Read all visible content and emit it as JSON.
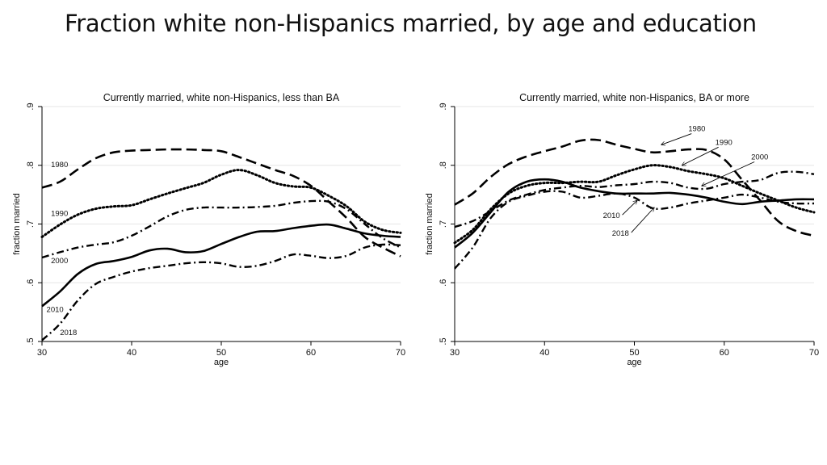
{
  "slide_title": "Fraction white non-Hispanics married, by age and education",
  "chart_data": [
    {
      "type": "line",
      "title": "Currently married, white non-Hispanics, less than BA",
      "xlabel": "age",
      "ylabel": "fraction married",
      "xlim": [
        30,
        70
      ],
      "ylim": [
        0.5,
        0.9
      ],
      "xticks": [
        30,
        40,
        50,
        60,
        70
      ],
      "yticks": [
        0.5,
        0.6,
        0.7,
        0.8,
        0.9
      ],
      "xtick_labels": [
        "30",
        "40",
        "50",
        "60",
        "70"
      ],
      "ytick_labels": [
        ".5",
        ".6",
        ".7",
        ".8",
        ".9"
      ],
      "grid": true,
      "series": [
        {
          "name": "1980",
          "style": "longdash",
          "x": [
            30,
            32,
            34,
            36,
            38,
            40,
            42,
            44,
            46,
            48,
            50,
            52,
            54,
            56,
            58,
            60,
            62,
            64,
            66,
            68,
            70
          ],
          "y": [
            0.762,
            0.772,
            0.793,
            0.812,
            0.822,
            0.825,
            0.826,
            0.827,
            0.827,
            0.826,
            0.824,
            0.814,
            0.803,
            0.792,
            0.782,
            0.765,
            0.738,
            0.71,
            0.678,
            0.66,
            0.645
          ]
        },
        {
          "name": "1990",
          "style": "dot",
          "x": [
            30,
            32,
            34,
            36,
            38,
            40,
            42,
            44,
            46,
            48,
            50,
            52,
            54,
            56,
            58,
            60,
            62,
            64,
            66,
            68,
            70
          ],
          "y": [
            0.678,
            0.699,
            0.716,
            0.726,
            0.73,
            0.732,
            0.742,
            0.752,
            0.761,
            0.77,
            0.784,
            0.792,
            0.783,
            0.77,
            0.764,
            0.762,
            0.748,
            0.73,
            0.704,
            0.69,
            0.685
          ]
        },
        {
          "name": "2000",
          "style": "dashdot",
          "x": [
            30,
            32,
            34,
            36,
            38,
            40,
            42,
            44,
            46,
            48,
            50,
            52,
            54,
            56,
            58,
            60,
            62,
            64,
            66,
            68,
            70
          ],
          "y": [
            0.643,
            0.652,
            0.66,
            0.665,
            0.669,
            0.68,
            0.696,
            0.713,
            0.724,
            0.728,
            0.728,
            0.728,
            0.729,
            0.731,
            0.736,
            0.739,
            0.738,
            0.725,
            0.7,
            0.676,
            0.66
          ]
        },
        {
          "name": "2010",
          "style": "solid",
          "x": [
            30,
            32,
            34,
            36,
            38,
            40,
            42,
            44,
            46,
            48,
            50,
            52,
            54,
            56,
            58,
            60,
            62,
            64,
            66,
            68,
            70
          ],
          "y": [
            0.56,
            0.585,
            0.615,
            0.632,
            0.637,
            0.644,
            0.655,
            0.658,
            0.652,
            0.654,
            0.666,
            0.678,
            0.687,
            0.688,
            0.693,
            0.697,
            0.699,
            0.692,
            0.684,
            0.68,
            0.678
          ]
        },
        {
          "name": "2018",
          "style": "dashdot",
          "x": [
            30,
            32,
            34,
            36,
            38,
            40,
            42,
            44,
            46,
            48,
            50,
            52,
            54,
            56,
            58,
            60,
            62,
            64,
            66,
            68,
            70
          ],
          "y": [
            0.502,
            0.53,
            0.57,
            0.598,
            0.61,
            0.619,
            0.625,
            0.629,
            0.633,
            0.635,
            0.633,
            0.627,
            0.629,
            0.637,
            0.648,
            0.646,
            0.642,
            0.646,
            0.66,
            0.665,
            0.664
          ]
        }
      ],
      "annotations": [
        {
          "text": "1980",
          "x": 31,
          "y": 0.797
        },
        {
          "text": "1990",
          "x": 31,
          "y": 0.714
        },
        {
          "text": "2000",
          "x": 31,
          "y": 0.633
        },
        {
          "text": "2010",
          "x": 30.5,
          "y": 0.55
        },
        {
          "text": "2018",
          "x": 32,
          "y": 0.511
        }
      ]
    },
    {
      "type": "line",
      "title": "Currently married, white non-Hispanics, BA or more",
      "xlabel": "age",
      "ylabel": "fraction married",
      "xlim": [
        30,
        70
      ],
      "ylim": [
        0.5,
        0.9
      ],
      "xticks": [
        30,
        40,
        50,
        60,
        70
      ],
      "yticks": [
        0.5,
        0.6,
        0.7,
        0.8,
        0.9
      ],
      "xtick_labels": [
        "30",
        "40",
        "50",
        "60",
        "70"
      ],
      "ytick_labels": [
        ".5",
        ".6",
        ".7",
        ".8",
        ".9"
      ],
      "grid": true,
      "series": [
        {
          "name": "1980",
          "style": "longdash",
          "x": [
            30,
            32,
            34,
            36,
            38,
            40,
            42,
            44,
            46,
            48,
            50,
            52,
            54,
            56,
            58,
            60,
            62,
            64,
            66,
            68,
            70
          ],
          "y": [
            0.733,
            0.752,
            0.78,
            0.802,
            0.815,
            0.824,
            0.832,
            0.842,
            0.843,
            0.835,
            0.828,
            0.822,
            0.824,
            0.827,
            0.826,
            0.81,
            0.775,
            0.74,
            0.705,
            0.688,
            0.68
          ]
        },
        {
          "name": "1990",
          "style": "dot",
          "x": [
            30,
            32,
            34,
            36,
            38,
            40,
            42,
            44,
            46,
            48,
            50,
            52,
            54,
            56,
            58,
            60,
            62,
            64,
            66,
            68,
            70
          ],
          "y": [
            0.668,
            0.69,
            0.725,
            0.752,
            0.765,
            0.77,
            0.77,
            0.772,
            0.772,
            0.783,
            0.793,
            0.8,
            0.797,
            0.79,
            0.785,
            0.778,
            0.765,
            0.752,
            0.74,
            0.728,
            0.72
          ]
        },
        {
          "name": "2000",
          "style": "dashdot",
          "x": [
            30,
            32,
            34,
            36,
            38,
            40,
            42,
            44,
            46,
            48,
            50,
            52,
            54,
            56,
            58,
            60,
            62,
            64,
            66,
            68,
            70
          ],
          "y": [
            0.695,
            0.705,
            0.722,
            0.74,
            0.75,
            0.758,
            0.762,
            0.765,
            0.763,
            0.766,
            0.768,
            0.772,
            0.77,
            0.762,
            0.76,
            0.768,
            0.772,
            0.775,
            0.787,
            0.789,
            0.785
          ]
        },
        {
          "name": "2010",
          "style": "solid",
          "x": [
            30,
            32,
            34,
            36,
            38,
            40,
            42,
            44,
            46,
            48,
            50,
            52,
            54,
            56,
            58,
            60,
            62,
            64,
            66,
            68,
            70
          ],
          "y": [
            0.66,
            0.685,
            0.72,
            0.755,
            0.772,
            0.776,
            0.772,
            0.762,
            0.756,
            0.752,
            0.752,
            0.752,
            0.753,
            0.75,
            0.745,
            0.738,
            0.734,
            0.738,
            0.74,
            0.742,
            0.742
          ]
        },
        {
          "name": "2018",
          "style": "dashdot",
          "x": [
            30,
            32,
            34,
            36,
            38,
            40,
            42,
            44,
            46,
            48,
            50,
            52,
            54,
            56,
            58,
            60,
            62,
            64,
            66,
            68,
            70
          ],
          "y": [
            0.624,
            0.66,
            0.71,
            0.738,
            0.748,
            0.755,
            0.755,
            0.745,
            0.748,
            0.752,
            0.745,
            0.727,
            0.728,
            0.735,
            0.74,
            0.745,
            0.75,
            0.745,
            0.738,
            0.735,
            0.735
          ]
        }
      ],
      "annotations": [
        {
          "text": "1980",
          "x": 56,
          "y": 0.858,
          "ax": 53,
          "ay": 0.835
        },
        {
          "text": "1990",
          "x": 59,
          "y": 0.835,
          "ax": 55.3,
          "ay": 0.8
        },
        {
          "text": "2000",
          "x": 63,
          "y": 0.81,
          "ax": 57.5,
          "ay": 0.765
        },
        {
          "text": "2010",
          "x": 46.5,
          "y": 0.71,
          "ax": 50.3,
          "ay": 0.74
        },
        {
          "text": "2018",
          "x": 47.5,
          "y": 0.68,
          "ax": 52.2,
          "ay": 0.728
        }
      ]
    }
  ]
}
